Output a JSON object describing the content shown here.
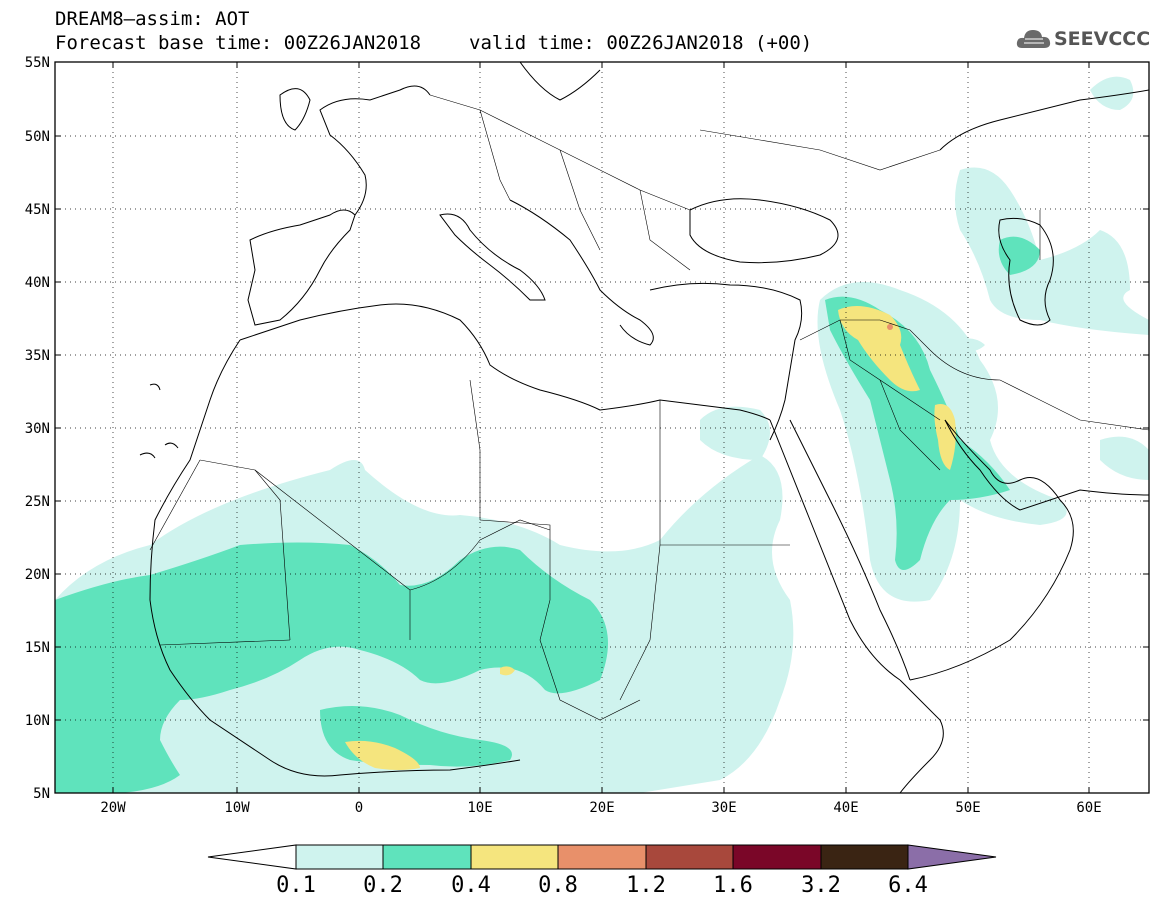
{
  "header": {
    "title": "DREAM8—assim: AOT",
    "base_time": "Forecast base time: 00Z26JAN2018",
    "valid_time": "valid time: 00Z26JAN2018 (+00)"
  },
  "logo": {
    "text": "SEEVCCC",
    "icon": "cloud-icon"
  },
  "map": {
    "lat_labels": [
      "55N",
      "50N",
      "45N",
      "40N",
      "35N",
      "30N",
      "25N",
      "20N",
      "15N",
      "10N",
      "5N"
    ],
    "lon_labels": [
      "20W",
      "10W",
      "0",
      "10E",
      "20E",
      "30E",
      "40E",
      "50E",
      "60E"
    ],
    "lat_range": [
      5,
      55
    ],
    "lon_range": [
      -25,
      65
    ],
    "grid": "dotted"
  },
  "colorbar": {
    "levels": [
      "0.1",
      "0.2",
      "0.4",
      "0.8",
      "1.2",
      "1.6",
      "3.2",
      "6.4"
    ],
    "colors": [
      "#ffffff",
      "#cff3ee",
      "#5fe3bc",
      "#f5e57e",
      "#e8906a",
      "#a8483c",
      "#7a0628",
      "#3a2413",
      "#8b6ea8"
    ]
  }
}
